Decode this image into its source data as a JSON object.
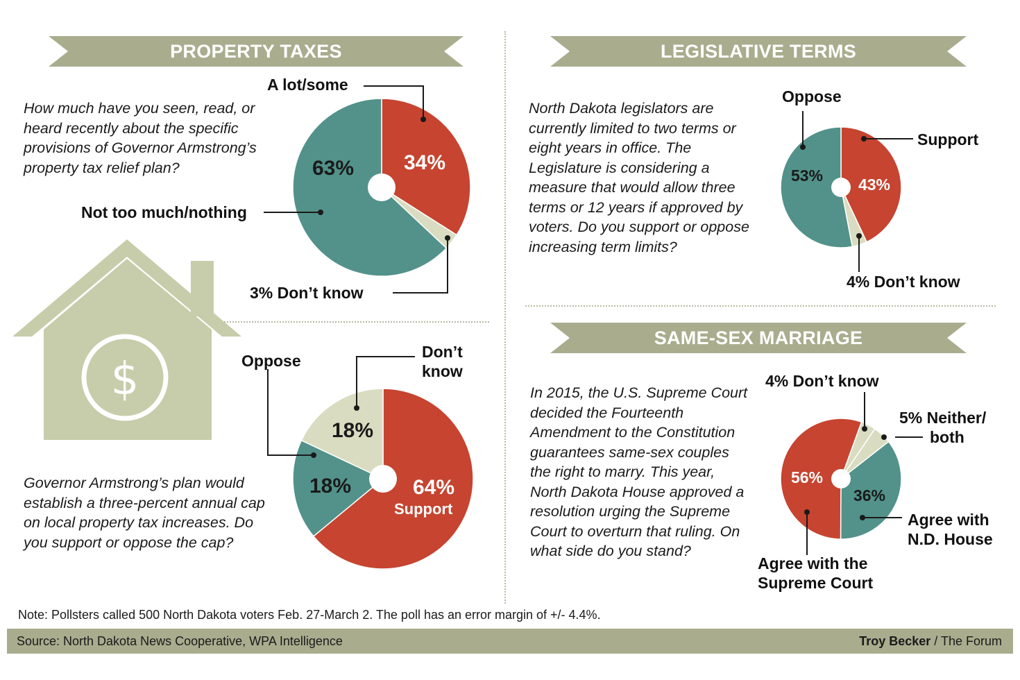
{
  "colors": {
    "teal": "#52928a",
    "red": "#c64430",
    "tan": "#d9dcc0",
    "banner": "#a9ad8e",
    "house": "#c7ccaa"
  },
  "property_taxes": {
    "title": "PROPERTY TAXES",
    "q1": "How much have you seen, read, or heard recently about the specific provisions of Governor Armstrong’s property tax relief plan?",
    "q1_labels": {
      "a_lot": "A lot/some",
      "not_much": "Not too much/nothing",
      "dont_know": "3% Don’t know"
    },
    "q2": "Governor Armstrong’s plan would establish a three-percent annual cap on local property tax increases. Do you support or oppose the cap?",
    "q2_labels": {
      "oppose": "Oppose",
      "dont_know_1": "Don’t",
      "dont_know_2": "know",
      "support": "Support"
    }
  },
  "legislative_terms": {
    "title": "LEGISLATIVE TERMS",
    "question": "North Dakota legislators are currently limited to two terms or eight years in office. The Legislature is considering a measure that would allow three terms or 12 years if approved by voters. Do you support or oppose increasing term limits?",
    "labels": {
      "oppose": "Oppose",
      "support": "Support",
      "dont_know": "4% Don’t know"
    }
  },
  "same_sex_marriage": {
    "title": "SAME-SEX MARRIAGE",
    "question": "In 2015, the U.S. Supreme Court decided the Fourteenth Amendment to the Constitution guarantees same-sex couples the right to marry. This year, North Dakota House approved a resolution urging the Supreme Court to overturn that ruling. On what side do you stand?",
    "labels": {
      "dont_know": "4% Don’t know",
      "neither_1": "5% Neither/",
      "neither_2": "both",
      "agree_house_1": "Agree with",
      "agree_house_2": "N.D. House",
      "agree_court_1": "Agree with the",
      "agree_court_2": "Supreme Court"
    }
  },
  "house_icon": {
    "symbol": "$",
    "name": "house-dollar-icon"
  },
  "note": "Note: Pollsters called 500 North Dakota voters Feb. 27-March 2. The poll has an error margin of +/- 4.4%.",
  "footer": {
    "source": "Source: North Dakota News Cooperative, WPA Intelligence",
    "credit_name": "Troy Becker",
    "credit_rest": " / The Forum"
  },
  "chart_data": [
    {
      "type": "pie",
      "title": "",
      "slices": [
        {
          "label": "A lot/some",
          "value": 34,
          "color": "#c64430"
        },
        {
          "label": "Don’t know",
          "value": 3,
          "color": "#d9dcc0"
        },
        {
          "label": "Not too much/nothing",
          "value": 63,
          "color": "#52928a"
        }
      ],
      "value_labels": [
        "34%",
        "",
        "63%"
      ]
    },
    {
      "type": "pie",
      "title": "",
      "slices": [
        {
          "label": "Support",
          "value": 64,
          "color": "#c64430"
        },
        {
          "label": "Oppose",
          "value": 18,
          "color": "#52928a"
        },
        {
          "label": "Don’t know",
          "value": 18,
          "color": "#d9dcc0"
        }
      ],
      "value_labels": [
        "64%",
        "18%",
        "18%"
      ]
    },
    {
      "type": "pie",
      "title": "",
      "slices": [
        {
          "label": "Support",
          "value": 43,
          "color": "#c64430"
        },
        {
          "label": "Don’t know",
          "value": 4,
          "color": "#d9dcc0"
        },
        {
          "label": "Oppose",
          "value": 53,
          "color": "#52928a"
        }
      ],
      "value_labels": [
        "43%",
        "",
        "53%"
      ]
    },
    {
      "type": "pie",
      "title": "",
      "slices": [
        {
          "label": "Agree with N.D. House",
          "value": 36,
          "color": "#52928a"
        },
        {
          "label": "Agree with the Supreme Court",
          "value": 56,
          "color": "#c64430"
        },
        {
          "label": "Don’t know",
          "value": 4,
          "color": "#d9dcc0"
        },
        {
          "label": "Neither/both",
          "value": 5,
          "color": "#d9dcc0"
        }
      ],
      "value_labels": [
        "36%",
        "56%",
        "",
        ""
      ]
    }
  ]
}
